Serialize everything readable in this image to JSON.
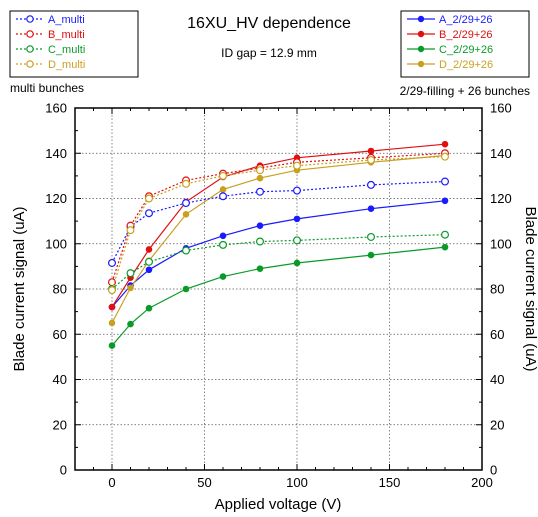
{
  "chart_data": {
    "type": "line",
    "title": "16XU_HV dependence",
    "subtitle": "ID gap = 12.9 mm",
    "left_note": "multi bunches",
    "right_note": "2/29-filling + 26 bunches",
    "xlabel": "Applied voltage (V)",
    "ylabel": "Blade current signal (uA)",
    "ylabel_right": "Blade current signal (uA)",
    "xlim": [
      -20,
      200
    ],
    "ylim": [
      0,
      160
    ],
    "x_ticks": [
      "0",
      "50",
      "100",
      "150",
      "200"
    ],
    "y_ticks": [
      "0",
      "20",
      "40",
      "60",
      "80",
      "100",
      "120",
      "140",
      "160"
    ],
    "grid": true,
    "legend_left_position": "top-left",
    "legend_right_position": "top-right",
    "series_multi": [
      {
        "name": "A_multi",
        "color": "#1a1aff",
        "x": [
          0,
          10,
          20,
          40,
          60,
          80,
          100,
          140,
          180
        ],
        "y": [
          91.5,
          107.5,
          113.5,
          118,
          121,
          123,
          123.5,
          126,
          127.5
        ]
      },
      {
        "name": "B_multi",
        "color": "#e01010",
        "x": [
          0,
          10,
          20,
          40,
          60,
          80,
          100,
          140,
          180
        ],
        "y": [
          83,
          108,
          121,
          128,
          131,
          133.5,
          136,
          138,
          140
        ]
      },
      {
        "name": "C_multi",
        "color": "#0a9a2a",
        "x": [
          0,
          10,
          20,
          40,
          60,
          80,
          100,
          140,
          180
        ],
        "y": [
          80,
          87,
          92,
          97,
          99.5,
          101,
          101.5,
          103,
          104
        ]
      },
      {
        "name": "D_multi",
        "color": "#c8a020",
        "x": [
          0,
          10,
          20,
          40,
          60,
          80,
          100,
          140,
          180
        ],
        "y": [
          79.5,
          106,
          120,
          126.5,
          130,
          132.5,
          134.5,
          137,
          138.5
        ]
      }
    ],
    "series_filling": [
      {
        "name": "A_2/29+26",
        "color": "#1a1aff",
        "x": [
          0,
          10,
          20,
          40,
          60,
          80,
          100,
          140,
          180
        ],
        "y": [
          72,
          81.5,
          88.5,
          98,
          103.5,
          108,
          111,
          115.5,
          119
        ]
      },
      {
        "name": "B_2/29+26",
        "color": "#e01010",
        "x": [
          0,
          10,
          20,
          40,
          60,
          80,
          100,
          140,
          180
        ],
        "y": [
          72,
          85,
          97.5,
          118.5,
          129.5,
          134.5,
          138,
          141,
          144
        ]
      },
      {
        "name": "C_2/29+26",
        "color": "#0a9a2a",
        "x": [
          0,
          10,
          20,
          40,
          60,
          80,
          100,
          140,
          180
        ],
        "y": [
          55,
          64.5,
          71.5,
          80,
          85.5,
          89,
          91.5,
          95,
          98.5
        ]
      },
      {
        "name": "D_2/29+26",
        "color": "#c8a020",
        "x": [
          0,
          10,
          20,
          40,
          60,
          80,
          100,
          140,
          180
        ],
        "y": [
          65,
          80.5,
          92.5,
          113,
          124,
          129,
          132.5,
          136,
          139
        ]
      }
    ]
  }
}
